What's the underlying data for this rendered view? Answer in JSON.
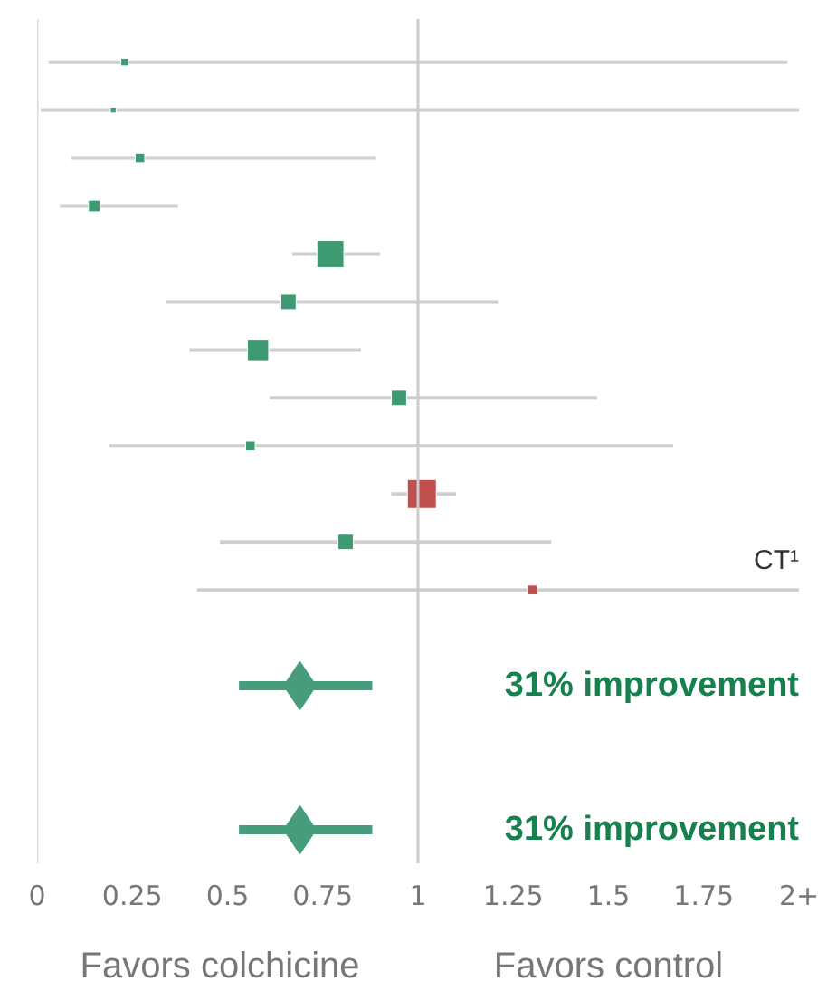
{
  "chart_data": {
    "type": "bubble",
    "orientation": "horizontal",
    "marker": "square",
    "legend": false,
    "grid": false,
    "categories": [
      null,
      null,
      null,
      null,
      null,
      null,
      null,
      null,
      null,
      null,
      null,
      null,
      null,
      null,
      null,
      null,
      null
    ],
    "xlim": [
      0,
      2
    ],
    "xticks": [
      0,
      0.25,
      0.5,
      0.75,
      1,
      1.25,
      1.5,
      1.75,
      {
        "value": 2,
        "label": "2+"
      }
    ],
    "ref_lines": [
      {
        "axis": "x",
        "value": 0,
        "color": "#d9d9d9"
      },
      {
        "axis": "x",
        "value": 1,
        "color": "#cccccc"
      }
    ],
    "series": [
      {
        "values": [
          0.23,
          0.2,
          0.27,
          0.15,
          0.77,
          0.66,
          0.58,
          0.95,
          0.56,
          1.01,
          0.81,
          1.3,
          null,
          null,
          null,
          null,
          null
        ],
        "errors": [
          [
            0.03,
            1.97
          ],
          [
            0.01,
            2.0
          ],
          [
            0.09,
            0.89
          ],
          [
            0.06,
            0.37
          ],
          [
            0.67,
            0.9
          ],
          [
            0.34,
            1.21
          ],
          [
            0.4,
            0.85
          ],
          [
            0.61,
            1.47
          ],
          [
            0.19,
            1.67
          ],
          [
            0.93,
            1.1
          ],
          [
            0.48,
            1.35
          ],
          [
            0.42,
            2.0
          ],
          null,
          null,
          null,
          null,
          null
        ],
        "sizes": [
          0.07,
          0.04,
          0.11,
          0.16,
          0.87,
          0.28,
          0.54,
          0.28,
          0.11,
          1,
          0.28,
          0.11,
          null,
          null,
          null,
          null,
          null
        ],
        "colors": [
          "#3d9a72",
          "#3d9a72",
          "#3d9a72",
          "#3d9a72",
          "#3d9a72",
          "#3d9a72",
          "#3d9a72",
          "#3d9a72",
          "#3d9a72",
          "#c0504d",
          "#3d9a72",
          "#c0504d",
          null,
          null,
          null,
          null,
          null
        ]
      },
      {
        "type": "scatter",
        "marker": "diamond",
        "color": "#479d7b",
        "values": [
          null,
          null,
          null,
          null,
          null,
          null,
          null,
          null,
          null,
          null,
          null,
          null,
          null,
          0.69,
          null,
          null,
          0.69
        ],
        "errors": [
          null,
          null,
          null,
          null,
          null,
          null,
          null,
          null,
          null,
          null,
          null,
          null,
          null,
          [
            0.53,
            0.88
          ],
          null,
          null,
          [
            0.53,
            0.88
          ]
        ]
      }
    ],
    "annotations": [
      "CT¹",
      "31% improvement",
      "31% improvement",
      "Favors colchicine",
      "Favors control"
    ]
  }
}
